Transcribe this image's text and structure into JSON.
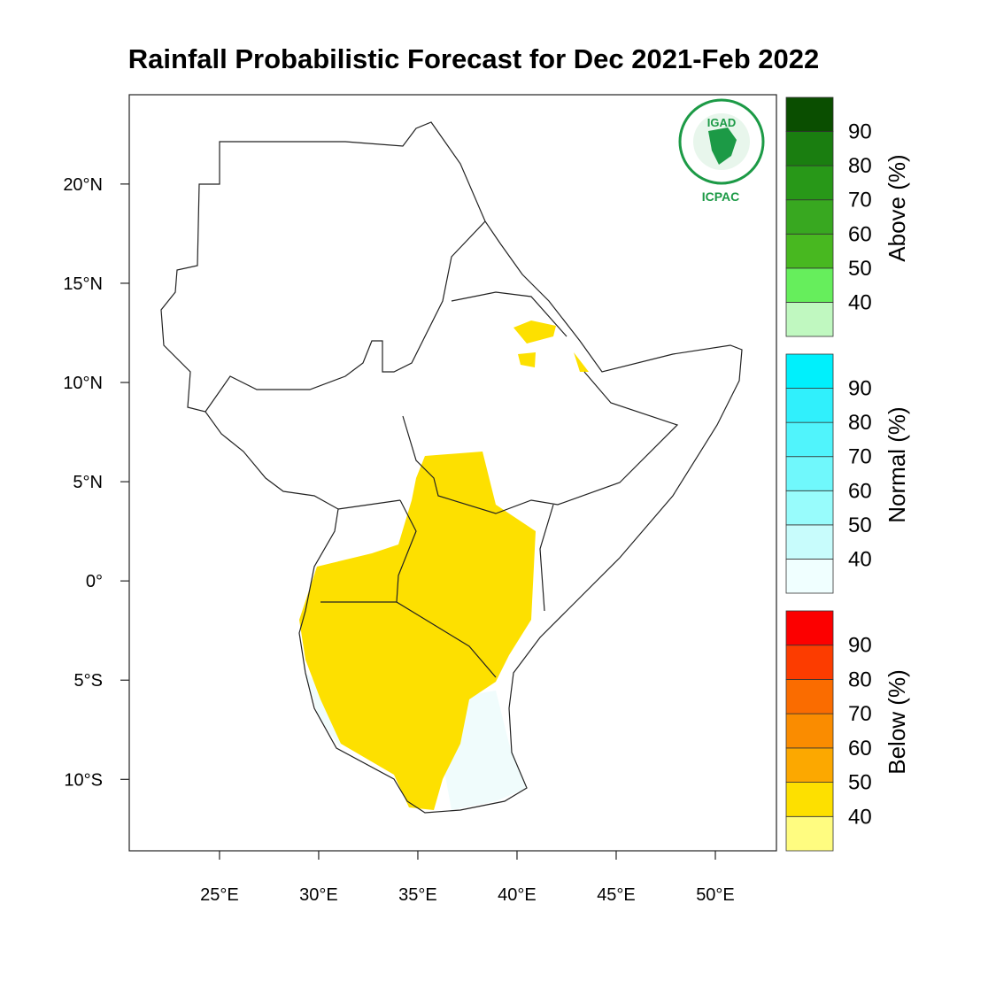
{
  "title": "Rainfall Probabilistic Forecast for Dec 2021-Feb 2022",
  "map": {
    "xlim": [
      20.45,
      53.08
    ],
    "ylim": [
      -13.6,
      24.5
    ],
    "xticks": [
      {
        "value": 25,
        "label": "25°E"
      },
      {
        "value": 30,
        "label": "30°E"
      },
      {
        "value": 35,
        "label": "35°E"
      },
      {
        "value": 40,
        "label": "40°E"
      },
      {
        "value": 45,
        "label": "45°E"
      },
      {
        "value": 50,
        "label": "50°E"
      }
    ],
    "yticks": [
      {
        "value": 20,
        "label": "20°N"
      },
      {
        "value": 15,
        "label": "15°N"
      },
      {
        "value": 10,
        "label": "10°N"
      },
      {
        "value": 5,
        "label": "5°N"
      },
      {
        "value": 0,
        "label": "0°"
      },
      {
        "value": -5,
        "label": "5°S"
      },
      {
        "value": -10,
        "label": "10°S"
      }
    ]
  },
  "logo": {
    "name": "IGAD",
    "org": "ICPAC"
  },
  "legend": [
    {
      "title": "Above (%)",
      "levels": [
        40,
        50,
        60,
        70,
        80,
        90
      ],
      "colors": [
        "#c0f8c0",
        "#66ee5c",
        "#48b820",
        "#38a820",
        "#289818",
        "#1a7e10",
        "#0a4e00"
      ]
    },
    {
      "title": "Normal (%)",
      "levels": [
        40,
        50,
        60,
        70,
        80,
        90
      ],
      "colors": [
        "#f0ffff",
        "#c8fcfc",
        "#98fcfc",
        "#70f8fc",
        "#50f4fc",
        "#30f0fc",
        "#00f0fc"
      ]
    },
    {
      "title": "Below (%)",
      "levels": [
        40,
        50,
        60,
        70,
        80,
        90
      ],
      "colors": [
        "#fffc80",
        "#fde000",
        "#fca800",
        "#fa8c00",
        "#fa6c00",
        "#fc3c00",
        "#fc0000"
      ]
    }
  ]
}
